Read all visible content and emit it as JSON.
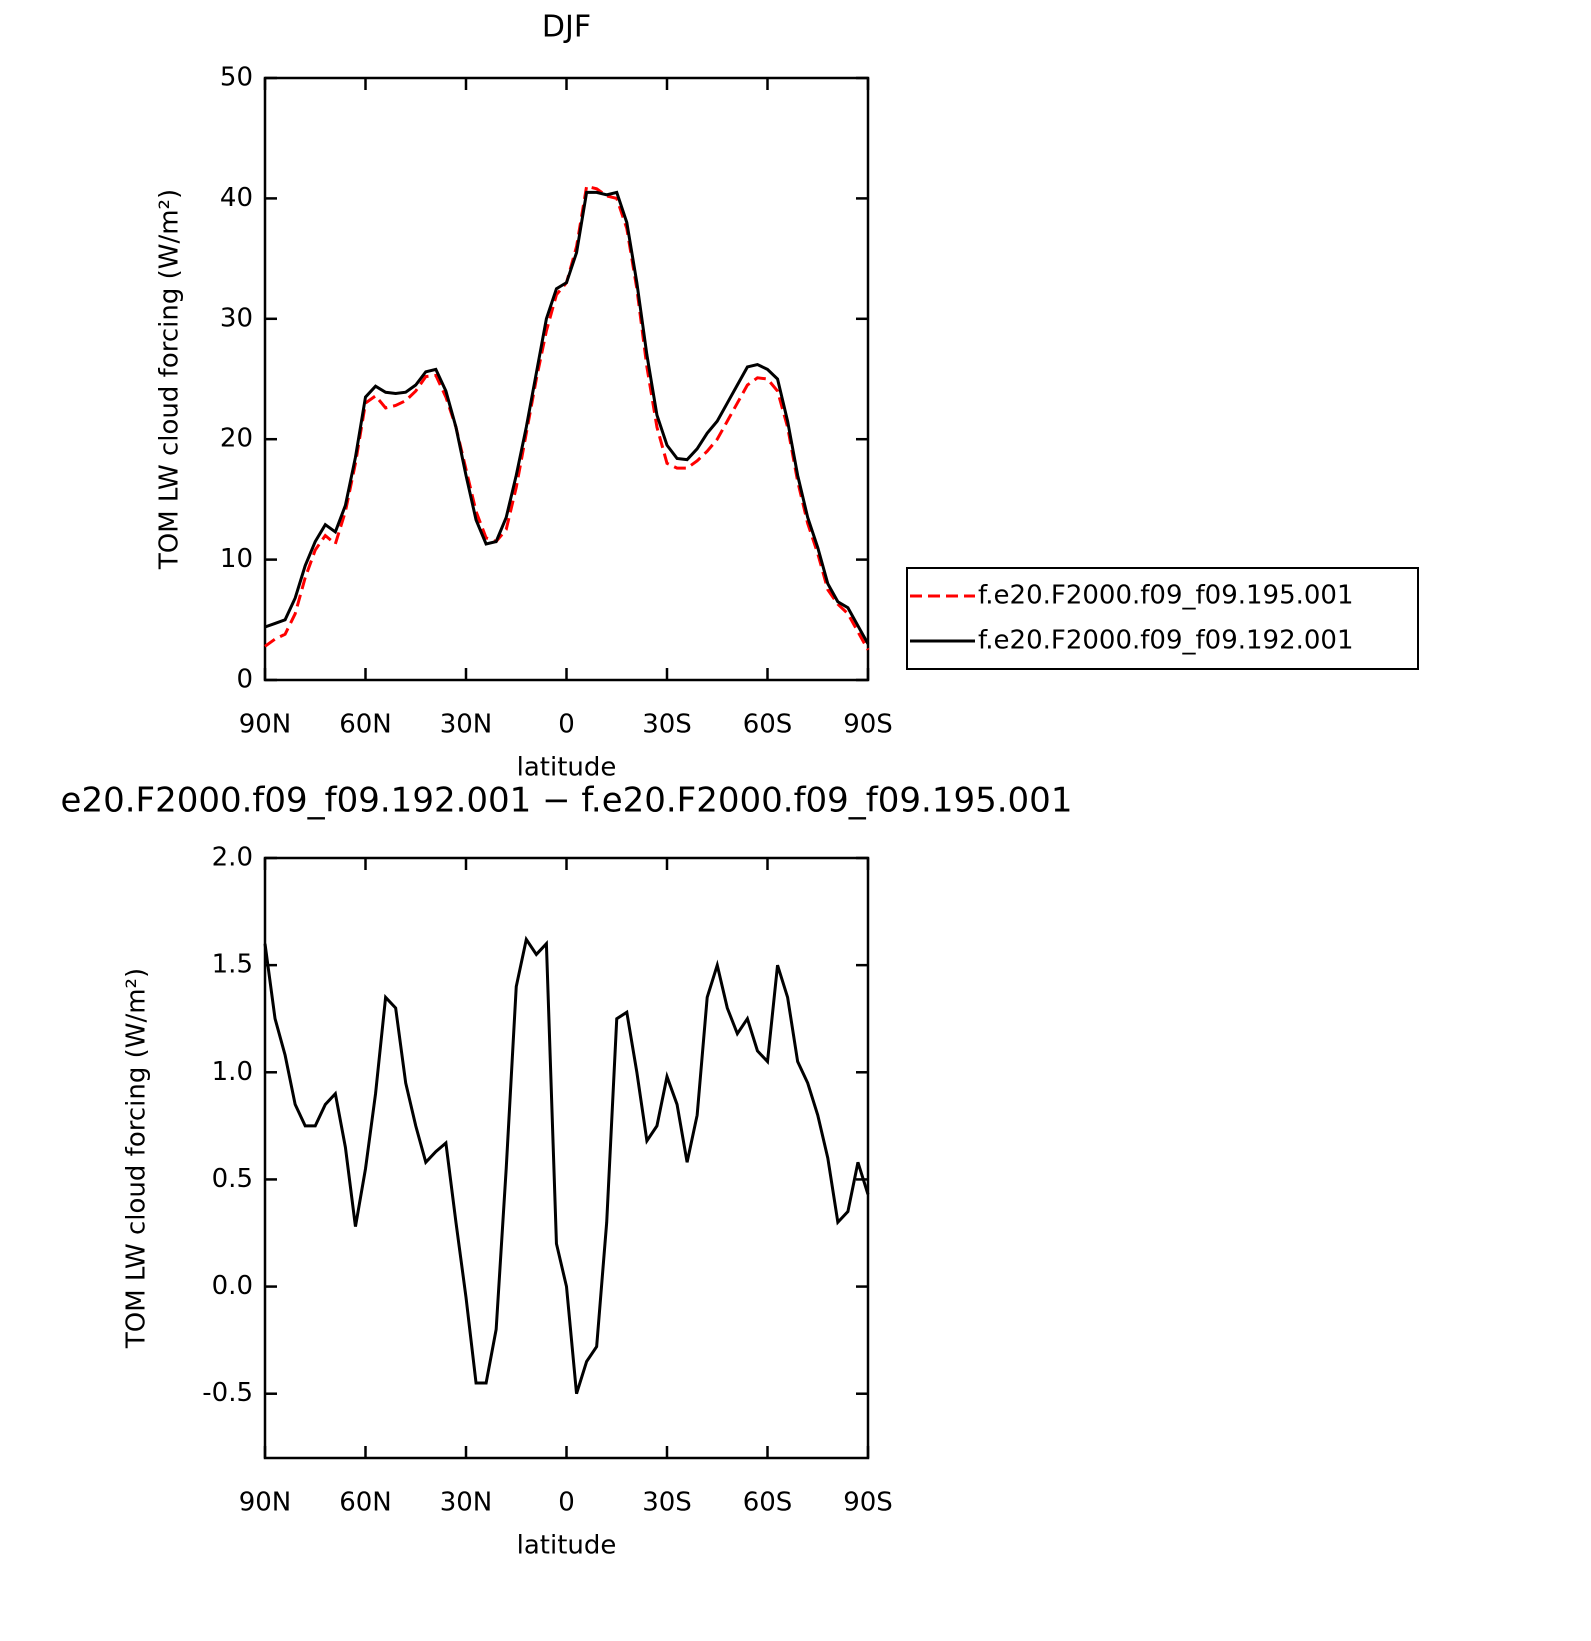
{
  "chart_data": [
    {
      "type": "line",
      "title": "DJF",
      "xlabel": "latitude",
      "ylabel": "TOM LW cloud forcing (W/m²)",
      "xlim": [
        90,
        -90
      ],
      "ylim": [
        0,
        50
      ],
      "xticks": [
        {
          "value": 90,
          "label": "90N"
        },
        {
          "value": 60,
          "label": "60N"
        },
        {
          "value": 30,
          "label": "30N"
        },
        0,
        {
          "value": -30,
          "label": "30S"
        },
        {
          "value": -60,
          "label": "60S"
        },
        {
          "value": -90,
          "label": "90S"
        }
      ],
      "yticks": [
        0,
        10,
        20,
        30,
        40,
        50
      ],
      "legend": "right",
      "x": [
        90,
        87,
        84,
        81,
        78,
        75,
        72,
        69,
        66,
        63,
        60,
        57,
        54,
        51,
        48,
        45,
        42,
        39,
        36,
        33,
        30,
        27,
        24,
        21,
        18,
        15,
        12,
        9,
        6,
        3,
        0,
        -3,
        -6,
        -9,
        -12,
        -15,
        -18,
        -21,
        -24,
        -27,
        -30,
        -33,
        -36,
        -39,
        -42,
        -45,
        -48,
        -51,
        -54,
        -57,
        -60,
        -63,
        -66,
        -69,
        -72,
        -75,
        -78,
        -81,
        -84,
        -87,
        -90
      ],
      "series": [
        {
          "name": "f.e20.F2000.f09_f09.195.001",
          "color": "#ff0000",
          "linestyle": "dashed",
          "values": [
            2.8,
            3.4,
            3.8,
            5.5,
            8.5,
            10.8,
            12,
            11.3,
            14,
            18,
            23,
            23.6,
            22.6,
            22.8,
            23.2,
            24,
            25.2,
            25.3,
            23.5,
            21,
            17.5,
            14,
            11.8,
            11.5,
            12.5,
            16,
            20.5,
            25,
            29,
            32,
            33,
            36,
            41,
            40.8,
            40.2,
            40,
            37.5,
            32.5,
            26,
            21,
            18,
            17.6,
            17.6,
            18.2,
            19,
            20,
            21.5,
            23,
            24.5,
            25.1,
            25,
            24,
            21,
            16.5,
            13,
            10.5,
            7.5,
            6.3,
            5.5,
            4,
            2.5
          ]
        },
        {
          "name": "f.e20.F2000.f09_f09.192.001",
          "color": "#000000",
          "linestyle": "solid",
          "values": [
            4.4,
            4.7,
            5.0,
            6.8,
            9.5,
            11.5,
            12.9,
            12.3,
            14.5,
            18.5,
            23.5,
            24.4,
            23.9,
            23.8,
            23.9,
            24.5,
            25.6,
            25.8,
            24,
            21,
            17,
            13.3,
            11.3,
            11.5,
            13.5,
            17,
            21,
            25.5,
            30,
            32.5,
            33,
            35.5,
            40.5,
            40.5,
            40.3,
            40.5,
            38,
            33,
            27,
            22,
            19.5,
            18.4,
            18.3,
            19.2,
            20.5,
            21.5,
            23,
            24.5,
            26,
            26.2,
            25.8,
            25,
            21.5,
            17,
            13.5,
            11,
            8,
            6.5,
            6,
            4.5,
            3
          ]
        }
      ]
    },
    {
      "type": "line",
      "title": "e20.F2000.f09_f09.192.001 − f.e20.F2000.f09_f09.195.001",
      "xlabel": "latitude",
      "ylabel": "TOM LW cloud forcing (W/m²)",
      "xlim": [
        90,
        -90
      ],
      "ylim": [
        -0.8,
        2.0
      ],
      "xticks": [
        {
          "value": 90,
          "label": "90N"
        },
        {
          "value": 60,
          "label": "60N"
        },
        {
          "value": 30,
          "label": "30N"
        },
        0,
        {
          "value": -30,
          "label": "30S"
        },
        {
          "value": -60,
          "label": "60S"
        },
        {
          "value": -90,
          "label": "90S"
        }
      ],
      "yticks": [
        -0.5,
        {
          "value": 0,
          "label": "0.0"
        },
        0.5,
        {
          "value": 1,
          "label": "1.0"
        },
        1.5,
        {
          "value": 2,
          "label": "2.0"
        }
      ],
      "x": [
        90,
        87,
        84,
        81,
        78,
        75,
        72,
        69,
        66,
        63,
        60,
        57,
        54,
        51,
        48,
        45,
        42,
        39,
        36,
        33,
        30,
        27,
        24,
        21,
        18,
        15,
        12,
        9,
        6,
        3,
        0,
        -3,
        -6,
        -9,
        -12,
        -15,
        -18,
        -21,
        -24,
        -27,
        -30,
        -33,
        -36,
        -39,
        -42,
        -45,
        -48,
        -51,
        -54,
        -57,
        -60,
        -63,
        -66,
        -69,
        -72,
        -75,
        -78,
        -81,
        -84,
        -87,
        -90
      ],
      "series": [
        {
          "color": "#000000",
          "linestyle": "solid",
          "values": [
            1.6,
            1.25,
            1.08,
            0.85,
            0.75,
            0.75,
            0.85,
            0.9,
            0.65,
            0.28,
            0.55,
            0.9,
            1.35,
            1.3,
            0.95,
            0.75,
            0.58,
            0.63,
            0.67,
            0.3,
            -0.05,
            -0.45,
            -0.45,
            -0.2,
            0.55,
            1.4,
            1.62,
            1.55,
            1.6,
            0.2,
            0.0,
            -0.5,
            -0.35,
            -0.28,
            0.3,
            1.25,
            1.28,
            1.0,
            0.68,
            0.75,
            0.98,
            0.85,
            0.58,
            0.8,
            1.35,
            1.5,
            1.3,
            1.18,
            1.25,
            1.1,
            1.05,
            1.5,
            1.35,
            1.05,
            0.95,
            0.8,
            0.6,
            0.3,
            0.35,
            0.58,
            0.43
          ]
        }
      ]
    }
  ]
}
